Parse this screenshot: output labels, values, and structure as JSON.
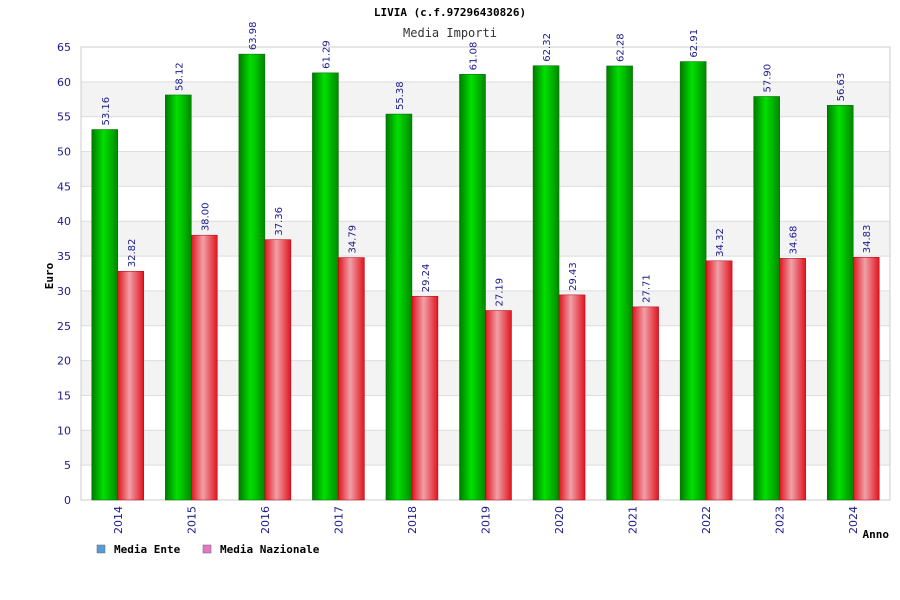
{
  "chart_data": {
    "type": "bar",
    "title": "LIVIA (c.f.97296430826)",
    "subtitle": "Media Importi",
    "xlabel": "Anno",
    "ylabel": "Euro",
    "ylim": [
      0,
      65
    ],
    "yticks": [
      0,
      5,
      10,
      15,
      20,
      25,
      30,
      35,
      40,
      45,
      50,
      55,
      60,
      65
    ],
    "categories": [
      "2014",
      "2015",
      "2016",
      "2017",
      "2018",
      "2019",
      "2020",
      "2021",
      "2022",
      "2023",
      "2024"
    ],
    "series": [
      {
        "name": "Media Ente",
        "color": "#00a000",
        "legend_color": "#5b9bd5",
        "values": [
          53.16,
          58.12,
          63.98,
          61.29,
          55.38,
          61.08,
          62.32,
          62.28,
          62.91,
          57.9,
          56.63
        ]
      },
      {
        "name": "Media Nazionale",
        "color": "#e8212c",
        "legend_color": "#e377c2",
        "values": [
          32.82,
          38.0,
          37.36,
          34.79,
          29.24,
          27.19,
          29.43,
          27.71,
          34.32,
          34.68,
          34.83
        ]
      }
    ],
    "grid": true,
    "legend": "bottom-left"
  }
}
